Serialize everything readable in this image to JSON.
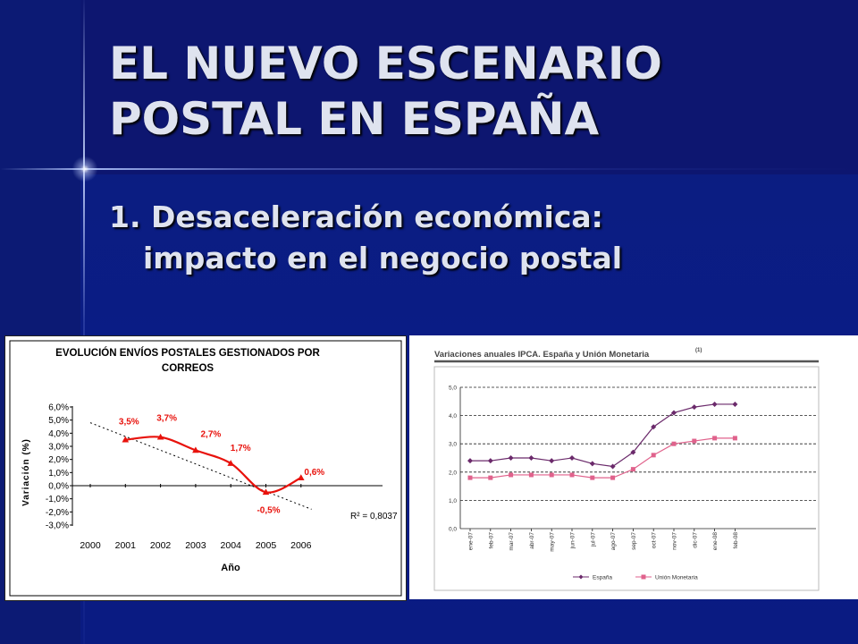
{
  "slide": {
    "title_line1": "EL NUEVO ESCENARIO",
    "title_line2": "POSTAL EN ESPAÑA",
    "bullet_line1": "1. Desaceleración económica:",
    "bullet_line2": "impacto en el negocio postal",
    "colors": {
      "background": "#0b1d82",
      "title": "#dfe3ef"
    }
  },
  "chart_data": [
    {
      "type": "line",
      "title": "EVOLUCIÓN ENVÍOS POSTALES GESTIONADOS POR CORREOS",
      "title_line1": "EVOLUCIÓN ENVÍOS POSTALES GESTIONADOS POR",
      "title_line2": "CORREOS",
      "xlabel": "Año",
      "ylabel": "Variación (%)",
      "x": [
        "2000",
        "2001",
        "2002",
        "2003",
        "2004",
        "2005",
        "2006"
      ],
      "ylim": [
        -3.0,
        6.0
      ],
      "yticks": [
        "6,0%",
        "5,0%",
        "4,0%",
        "3,0%",
        "2,0%",
        "1,0%",
        "0,0%",
        "-1,0%",
        "-2,0%",
        "-3,0%"
      ],
      "series": [
        {
          "x": [
            2001,
            2002,
            2003,
            2004,
            2005,
            2006
          ],
          "values": [
            3.5,
            3.7,
            2.7,
            1.7,
            -0.5,
            0.6
          ],
          "labels": [
            "3,5%",
            "3,7%",
            "2,7%",
            "1,7%",
            "-0,5%",
            "0,6%"
          ],
          "color": "#e8120c"
        }
      ],
      "trendline": {
        "x": [
          2000,
          2006.3
        ],
        "values": [
          4.8,
          -1.8
        ],
        "style": "dashed",
        "annotation": "R² = 0,8037"
      },
      "grid": false
    },
    {
      "type": "line",
      "title": "Variaciones anuales IPCA. España y Unión Monetaria",
      "title_note": "(1)",
      "x": [
        "ene-07",
        "feb-07",
        "mar-07",
        "abr-07",
        "may-07",
        "jun-07",
        "jul-07",
        "ago-07",
        "sep-07",
        "oct-07",
        "nov-07",
        "dic-07",
        "ene-08",
        "feb-08"
      ],
      "ylim": [
        0,
        5
      ],
      "yticks": [
        "5,0",
        "4,0",
        "3,0",
        "2,0",
        "1,0",
        "0,0"
      ],
      "series": [
        {
          "name": "España",
          "values": [
            2.4,
            2.4,
            2.5,
            2.5,
            2.4,
            2.5,
            2.3,
            2.2,
            2.7,
            3.6,
            4.1,
            4.3,
            4.4,
            4.4
          ],
          "color": "#6b2a6b",
          "marker": "diamond"
        },
        {
          "name": "Unión Monetaria",
          "values": [
            1.8,
            1.8,
            1.9,
            1.9,
            1.9,
            1.9,
            1.8,
            1.8,
            2.1,
            2.6,
            3.0,
            3.1,
            3.2,
            3.2
          ],
          "color": "#e0628c",
          "marker": "square"
        }
      ],
      "grid": true,
      "legend": "bottom"
    }
  ]
}
